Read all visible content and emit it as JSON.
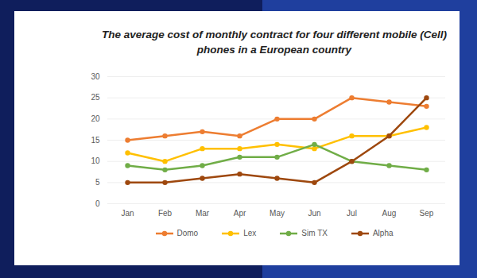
{
  "chart_data": {
    "type": "line",
    "title": "The average cost of monthly contract for four different mobile (Cell) phones in a European country",
    "categories": [
      "Jan",
      "Feb",
      "Mar",
      "Apr",
      "May",
      "Jun",
      "Jul",
      "Aug",
      "Sep"
    ],
    "series": [
      {
        "name": "Domo",
        "color": "#ed7d31",
        "values": [
          15,
          16,
          17,
          16,
          20,
          20,
          25,
          24,
          23
        ]
      },
      {
        "name": "Lex",
        "color": "#ffc000",
        "values": [
          12,
          10,
          13,
          13,
          14,
          13,
          16,
          16,
          18
        ]
      },
      {
        "name": "Sim TX",
        "color": "#70ad47",
        "values": [
          9,
          8,
          9,
          11,
          11,
          14,
          10,
          9,
          8
        ]
      },
      {
        "name": "Alpha",
        "color": "#9e480e",
        "values": [
          5,
          5,
          6,
          7,
          6,
          5,
          10,
          16,
          25
        ]
      }
    ],
    "ylim": [
      0,
      30
    ],
    "yticks": [
      0,
      5,
      10,
      15,
      20,
      25,
      30
    ],
    "grid": true,
    "legend": "bottom",
    "marker": "circle"
  }
}
